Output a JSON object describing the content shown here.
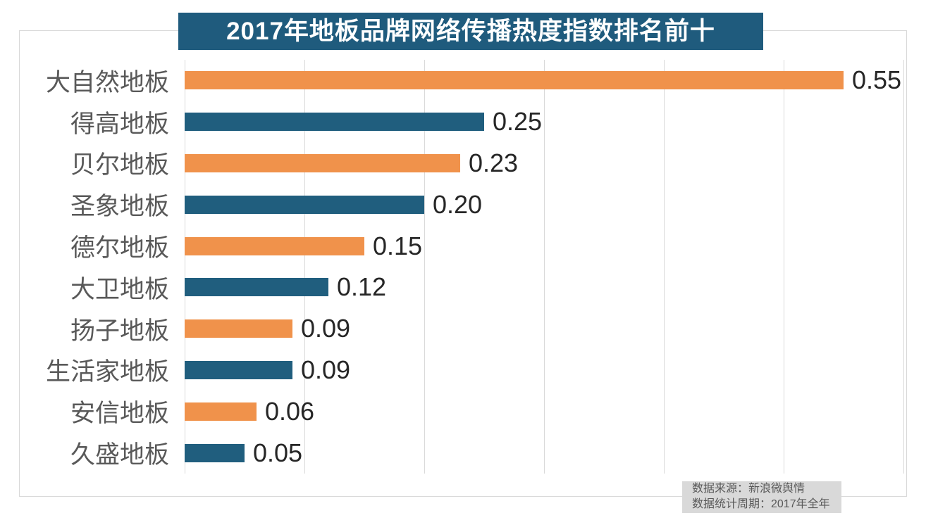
{
  "title": "2017年地板品牌网络传播热度指数排名前十",
  "colors": {
    "title_background": "#1f5b7d",
    "orange_bar": "#f0924b",
    "blue_bar": "#205e7e",
    "gridline": "#d9d9d9",
    "category_label": "#595959",
    "value_label": "#262626",
    "note_background": "#d9d9d9",
    "note_text": "#595959"
  },
  "footer": {
    "line1": "数据来源：新浪微舆情",
    "line2": "数据统计周期：2017年全年"
  },
  "chart_data": {
    "type": "bar",
    "orientation": "horizontal",
    "title": "2017年地板品牌网络传播热度指数排名前十",
    "categories": [
      "大自然地板",
      "得高地板",
      "贝尔地板",
      "圣象地板",
      "德尔地板",
      "大卫地板",
      "扬子地板",
      "生活家地板",
      "安信地板",
      "久盛地板"
    ],
    "values": [
      0.55,
      0.25,
      0.23,
      0.2,
      0.15,
      0.12,
      0.09,
      0.09,
      0.06,
      0.05
    ],
    "value_labels": [
      "0.55",
      "0.25",
      "0.23",
      "0.20",
      "0.15",
      "0.12",
      "0.09",
      "0.09",
      "0.06",
      "0.05"
    ],
    "bar_colors": [
      "#f0924b",
      "#205e7e",
      "#f0924b",
      "#205e7e",
      "#f0924b",
      "#205e7e",
      "#f0924b",
      "#205e7e",
      "#f0924b",
      "#205e7e"
    ],
    "xlabel": "",
    "ylabel": "",
    "xlim": [
      0,
      0.6
    ],
    "grid": true,
    "grid_interval": 0.1,
    "legend": false,
    "value_labels_position": "end-of-bar",
    "source_note": [
      "数据来源：新浪微舆情",
      "数据统计周期：2017年全年"
    ]
  }
}
